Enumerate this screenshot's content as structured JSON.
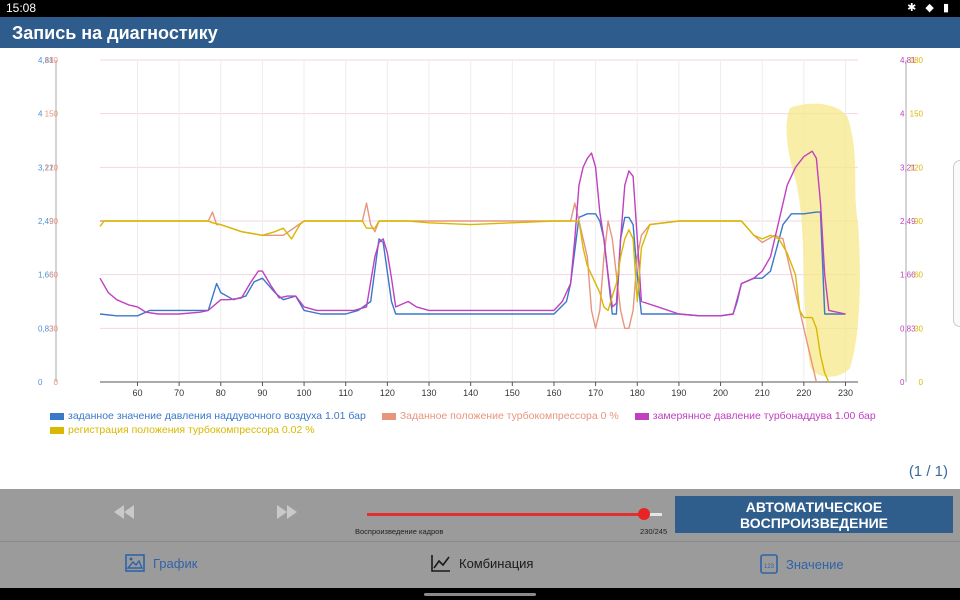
{
  "status": {
    "time": "15:08",
    "icons": [
      "bluetooth-icon",
      "wifi-icon",
      "battery-icon"
    ]
  },
  "app": {
    "title": "Запись на диагностику"
  },
  "chart_data": {
    "type": "line",
    "x_ticks": [
      "60",
      "70",
      "80",
      "90",
      "100",
      "110",
      "120",
      "130",
      "140",
      "150",
      "160",
      "170",
      "180",
      "190",
      "200",
      "210",
      "220",
      "230"
    ],
    "xlim": [
      51,
      233
    ],
    "left_axis_a": {
      "ticks": [
        "0",
        "0,83",
        "1,66",
        "2,49",
        "3,21",
        "4",
        "4,81"
      ],
      "color": "#4a90d9"
    },
    "left_axis_b": {
      "ticks": [
        "0",
        "30",
        "60",
        "90",
        "120",
        "150",
        "180"
      ],
      "color": "#e8957d"
    },
    "right_axis_a": {
      "ticks": [
        "0",
        "0,83",
        "1,66",
        "2,49",
        "3,21",
        "4",
        "4,81"
      ],
      "color": "#c040c0"
    },
    "right_axis_b": {
      "ticks": [
        "0",
        "30",
        "60",
        "90",
        "120",
        "150",
        "180"
      ],
      "color": "#d9b800"
    },
    "ylim": [
      0,
      180
    ],
    "series": [
      {
        "name": "заданное значение давления наддувочного воздуха 1.01 бар",
        "color": "#3a78c8",
        "points": [
          [
            51,
            38
          ],
          [
            55,
            37
          ],
          [
            60,
            37
          ],
          [
            63,
            40
          ],
          [
            70,
            40
          ],
          [
            77,
            40
          ],
          [
            79,
            55
          ],
          [
            80,
            50
          ],
          [
            83,
            46
          ],
          [
            86,
            48
          ],
          [
            88,
            56
          ],
          [
            90,
            58
          ],
          [
            93,
            50
          ],
          [
            95,
            46
          ],
          [
            98,
            48
          ],
          [
            100,
            40
          ],
          [
            104,
            38
          ],
          [
            110,
            38
          ],
          [
            113,
            40
          ],
          [
            116,
            45
          ],
          [
            118,
            80
          ],
          [
            119,
            78
          ],
          [
            121,
            45
          ],
          [
            122,
            38
          ],
          [
            125,
            38
          ],
          [
            130,
            38
          ],
          [
            140,
            38
          ],
          [
            150,
            38
          ],
          [
            155,
            38
          ],
          [
            160,
            38
          ],
          [
            163,
            45
          ],
          [
            164,
            55
          ],
          [
            166,
            92
          ],
          [
            168,
            94
          ],
          [
            170,
            94
          ],
          [
            171,
            90
          ],
          [
            172,
            80
          ],
          [
            174,
            38
          ],
          [
            175,
            38
          ],
          [
            176,
            80
          ],
          [
            177,
            92
          ],
          [
            178,
            92
          ],
          [
            179,
            88
          ],
          [
            180,
            60
          ],
          [
            181,
            38
          ],
          [
            185,
            38
          ],
          [
            190,
            38
          ],
          [
            195,
            37
          ],
          [
            200,
            37
          ],
          [
            203,
            38
          ],
          [
            204,
            45
          ],
          [
            205,
            55
          ],
          [
            208,
            58
          ],
          [
            210,
            58
          ],
          [
            212,
            62
          ],
          [
            215,
            88
          ],
          [
            217,
            94
          ],
          [
            220,
            94
          ],
          [
            223,
            95
          ],
          [
            224,
            95
          ],
          [
            225,
            38
          ],
          [
            229,
            38
          ],
          [
            230,
            38
          ]
        ]
      },
      {
        "name": "Заданное положение турбокомпрессора 0 %",
        "color": "#e8957d",
        "points": [
          [
            51,
            90
          ],
          [
            60,
            90
          ],
          [
            70,
            90
          ],
          [
            77,
            90
          ],
          [
            78,
            95
          ],
          [
            79,
            88
          ],
          [
            80,
            88
          ],
          [
            85,
            84
          ],
          [
            90,
            82
          ],
          [
            95,
            82
          ],
          [
            100,
            90
          ],
          [
            110,
            90
          ],
          [
            114,
            90
          ],
          [
            115,
            100
          ],
          [
            116,
            88
          ],
          [
            117,
            84
          ],
          [
            118,
            90
          ],
          [
            125,
            90
          ],
          [
            130,
            90
          ],
          [
            140,
            90
          ],
          [
            150,
            90
          ],
          [
            160,
            90
          ],
          [
            164,
            90
          ],
          [
            165,
            100
          ],
          [
            166,
            90
          ],
          [
            168,
            70
          ],
          [
            169,
            40
          ],
          [
            170,
            30
          ],
          [
            171,
            40
          ],
          [
            172,
            70
          ],
          [
            173,
            90
          ],
          [
            174,
            80
          ],
          [
            175,
            60
          ],
          [
            176,
            40
          ],
          [
            177,
            30
          ],
          [
            178,
            30
          ],
          [
            179,
            40
          ],
          [
            180,
            70
          ],
          [
            181,
            82
          ],
          [
            183,
            88
          ],
          [
            190,
            90
          ],
          [
            200,
            90
          ],
          [
            205,
            90
          ],
          [
            208,
            82
          ],
          [
            210,
            78
          ],
          [
            213,
            82
          ],
          [
            215,
            80
          ],
          [
            217,
            60
          ],
          [
            219,
            40
          ],
          [
            221,
            20
          ],
          [
            223,
            0
          ]
        ]
      },
      {
        "name": "замерянное давление турбонаддува 1.00 бар",
        "color": "#c040c0",
        "points": [
          [
            51,
            58
          ],
          [
            53,
            50
          ],
          [
            55,
            46
          ],
          [
            58,
            43
          ],
          [
            60,
            42
          ],
          [
            62,
            39
          ],
          [
            65,
            38
          ],
          [
            70,
            38
          ],
          [
            75,
            39
          ],
          [
            77,
            40
          ],
          [
            79,
            44
          ],
          [
            80,
            46
          ],
          [
            82,
            46
          ],
          [
            85,
            47
          ],
          [
            87,
            55
          ],
          [
            89,
            62
          ],
          [
            90,
            62
          ],
          [
            92,
            54
          ],
          [
            94,
            47
          ],
          [
            96,
            48
          ],
          [
            98,
            48
          ],
          [
            100,
            42
          ],
          [
            103,
            40
          ],
          [
            108,
            40
          ],
          [
            112,
            40
          ],
          [
            115,
            42
          ],
          [
            117,
            70
          ],
          [
            118,
            78
          ],
          [
            119,
            80
          ],
          [
            120,
            72
          ],
          [
            121,
            58
          ],
          [
            122,
            42
          ],
          [
            125,
            45
          ],
          [
            127,
            42
          ],
          [
            130,
            40
          ],
          [
            140,
            40
          ],
          [
            150,
            40
          ],
          [
            155,
            40
          ],
          [
            160,
            40
          ],
          [
            162,
            45
          ],
          [
            164,
            55
          ],
          [
            165,
            80
          ],
          [
            166,
            110
          ],
          [
            167,
            120
          ],
          [
            168,
            125
          ],
          [
            169,
            128
          ],
          [
            170,
            120
          ],
          [
            171,
            95
          ],
          [
            172,
            80
          ],
          [
            173,
            60
          ],
          [
            174,
            42
          ],
          [
            175,
            44
          ],
          [
            176,
            80
          ],
          [
            177,
            110
          ],
          [
            178,
            118
          ],
          [
            179,
            115
          ],
          [
            180,
            80
          ],
          [
            181,
            45
          ],
          [
            185,
            42
          ],
          [
            190,
            38
          ],
          [
            195,
            37
          ],
          [
            200,
            37
          ],
          [
            203,
            38
          ],
          [
            205,
            55
          ],
          [
            208,
            58
          ],
          [
            210,
            62
          ],
          [
            212,
            70
          ],
          [
            214,
            90
          ],
          [
            216,
            110
          ],
          [
            218,
            120
          ],
          [
            220,
            126
          ],
          [
            222,
            129
          ],
          [
            223,
            125
          ],
          [
            224,
            100
          ],
          [
            225,
            60
          ],
          [
            226,
            40
          ],
          [
            230,
            38
          ]
        ]
      },
      {
        "name": "регистрация положения турбокомпрессора 0.02 %",
        "color": "#d9b800",
        "points": [
          [
            51,
            87
          ],
          [
            52,
            90
          ],
          [
            60,
            90
          ],
          [
            70,
            90
          ],
          [
            77,
            90
          ],
          [
            78,
            89
          ],
          [
            80,
            88
          ],
          [
            85,
            84
          ],
          [
            90,
            82
          ],
          [
            93,
            84
          ],
          [
            95,
            86
          ],
          [
            97,
            80
          ],
          [
            99,
            88
          ],
          [
            100,
            90
          ],
          [
            110,
            90
          ],
          [
            114,
            90
          ],
          [
            115,
            86
          ],
          [
            117,
            86
          ],
          [
            118,
            90
          ],
          [
            125,
            90
          ],
          [
            130,
            89
          ],
          [
            140,
            88
          ],
          [
            150,
            89
          ],
          [
            160,
            90
          ],
          [
            164,
            90
          ],
          [
            165,
            90
          ],
          [
            166,
            90
          ],
          [
            167,
            75
          ],
          [
            168,
            65
          ],
          [
            169,
            60
          ],
          [
            170,
            55
          ],
          [
            171,
            50
          ],
          [
            172,
            42
          ],
          [
            173,
            40
          ],
          [
            174,
            48
          ],
          [
            175,
            55
          ],
          [
            176,
            70
          ],
          [
            177,
            80
          ],
          [
            178,
            85
          ],
          [
            179,
            80
          ],
          [
            180,
            45
          ],
          [
            181,
            75
          ],
          [
            183,
            88
          ],
          [
            190,
            90
          ],
          [
            200,
            90
          ],
          [
            205,
            90
          ],
          [
            208,
            82
          ],
          [
            210,
            80
          ],
          [
            212,
            82
          ],
          [
            214,
            80
          ],
          [
            216,
            72
          ],
          [
            218,
            60
          ],
          [
            219,
            40
          ],
          [
            220,
            36
          ],
          [
            222,
            36
          ],
          [
            223,
            30
          ],
          [
            224,
            15
          ],
          [
            225,
            5
          ],
          [
            226,
            0
          ]
        ]
      }
    ]
  },
  "pager": {
    "text": "(1 / 1)"
  },
  "controls": {
    "rewind_icon": "rewind-icon",
    "forward_icon": "fast-forward-icon",
    "slider_label": "Воспроизведение кадров",
    "slider_count": "230/245",
    "slider_progress": 0.9388,
    "auto_play_label": "АВТОМАТИЧЕСКОЕ ВОСПРОИЗВЕДЕНИЕ"
  },
  "nav": {
    "graph_label": "График",
    "combo_label": "Комбинация",
    "value_label": "Значение"
  }
}
